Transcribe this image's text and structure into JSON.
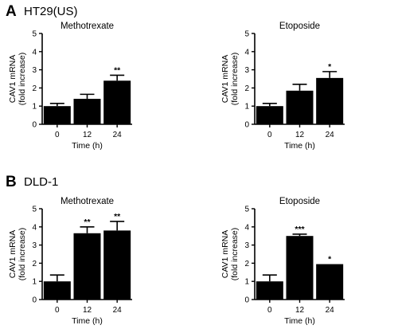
{
  "panels": [
    {
      "letter": "A",
      "cell_line": "HT29(US)"
    },
    {
      "letter": "B",
      "cell_line": "DLD-1"
    }
  ],
  "chart_data": [
    {
      "type": "bar",
      "panel": "A",
      "title": "Methotrexate",
      "xlabel": "Time (h)",
      "ylabel": "CAV1 mRNA (fold increase)",
      "ylabel_lines": [
        "CAV1 mRNA",
        "(fold increase)"
      ],
      "categories": [
        "0",
        "12",
        "24"
      ],
      "values": [
        1.0,
        1.4,
        2.4
      ],
      "errors": [
        0.15,
        0.25,
        0.3
      ],
      "significance": [
        "",
        "",
        "**"
      ],
      "ylim": [
        0,
        5
      ],
      "yticks": [
        "0",
        "1",
        "2",
        "3",
        "4",
        "5"
      ],
      "bar_color": "#000000"
    },
    {
      "type": "bar",
      "panel": "A",
      "title": "Etoposide",
      "xlabel": "Time (h)",
      "ylabel": "CAV1 mRNA (fold increase)",
      "ylabel_lines": [
        "CAV1 mRNA",
        "(fold increase)"
      ],
      "categories": [
        "0",
        "12",
        "24"
      ],
      "values": [
        1.0,
        1.85,
        2.55
      ],
      "errors": [
        0.15,
        0.35,
        0.35
      ],
      "significance": [
        "",
        "",
        "*"
      ],
      "ylim": [
        0,
        5
      ],
      "yticks": [
        "0",
        "1",
        "2",
        "3",
        "4",
        "5"
      ],
      "bar_color": "#000000"
    },
    {
      "type": "bar",
      "panel": "B",
      "title": "Methotrexate",
      "xlabel": "Time (h)",
      "ylabel": "CAV1 mRNA (fold increase)",
      "ylabel_lines": [
        "CAV1 mRNA",
        "(fold increase)"
      ],
      "categories": [
        "0",
        "12",
        "24"
      ],
      "values": [
        1.0,
        3.65,
        3.8
      ],
      "errors": [
        0.35,
        0.35,
        0.5
      ],
      "significance": [
        "",
        "**",
        "**"
      ],
      "ylim": [
        0,
        5
      ],
      "yticks": [
        "0",
        "1",
        "2",
        "3",
        "4",
        "5"
      ],
      "bar_color": "#000000"
    },
    {
      "type": "bar",
      "panel": "B",
      "title": "Etoposide",
      "xlabel": "Time (h)",
      "ylabel": "CAV1 mRNA (fold increase)",
      "ylabel_lines": [
        "CAV1 mRNA",
        "(fold increase)"
      ],
      "categories": [
        "0",
        "12",
        "24"
      ],
      "values": [
        1.0,
        3.5,
        1.95
      ],
      "errors": [
        0.35,
        0.1,
        0.0
      ],
      "significance": [
        "",
        "***",
        "*"
      ],
      "ylim": [
        0,
        5
      ],
      "yticks": [
        "0",
        "1",
        "2",
        "3",
        "4",
        "5"
      ],
      "bar_color": "#000000"
    }
  ]
}
